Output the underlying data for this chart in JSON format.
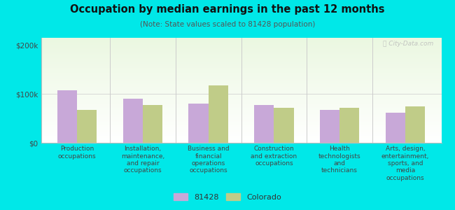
{
  "title": "Occupation by median earnings in the past 12 months",
  "subtitle": "(Note: State values scaled to 81428 population)",
  "categories": [
    "Production\noccupations",
    "Installation,\nmaintenance,\nand repair\noccupations",
    "Business and\nfinancial\noperations\noccupations",
    "Construction\nand extraction\noccupations",
    "Health\ntechnologists\nand\ntechnicians",
    "Arts, design,\nentertainment,\nsports, and\nmedia\noccupations"
  ],
  "values_81428": [
    107000,
    90000,
    80000,
    78000,
    68000,
    62000
  ],
  "values_colorado": [
    68000,
    78000,
    118000,
    72000,
    72000,
    75000
  ],
  "color_81428": "#c8a8d8",
  "color_colorado": "#c0cc88",
  "yticks": [
    0,
    100000,
    200000
  ],
  "ytick_labels": [
    "$0",
    "$100k",
    "$200k"
  ],
  "ylim": [
    0,
    215000
  ],
  "background_color": "#00e8e8",
  "legend_label_81428": "81428",
  "legend_label_colorado": "Colorado",
  "watermark": "ⓘ City-Data.com",
  "bar_width": 0.3
}
